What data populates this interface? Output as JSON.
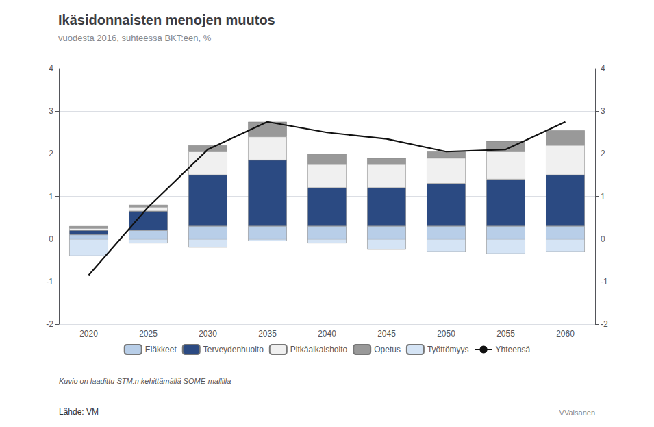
{
  "chart_data": {
    "type": "bar",
    "title": "Ikäsidonnaisten menojen muutos",
    "subtitle": "vuodesta 2016, suhteessa BKT:een, %",
    "categories": [
      "2020",
      "2025",
      "2030",
      "2035",
      "2040",
      "2045",
      "2050",
      "2055",
      "2060"
    ],
    "series": [
      {
        "name": "Eläkkeet",
        "type": "bar",
        "color": "#b8cee8",
        "values": [
          0.1,
          0.2,
          0.3,
          0.3,
          0.3,
          0.3,
          0.3,
          0.3,
          0.3
        ]
      },
      {
        "name": "Terveydenhuolto",
        "type": "bar",
        "color": "#2b4a82",
        "values": [
          0.1,
          0.45,
          1.2,
          1.55,
          0.9,
          0.9,
          1.0,
          1.1,
          1.2
        ]
      },
      {
        "name": "Pitkäaikaishoito",
        "type": "bar",
        "color": "#f0f0f0",
        "values": [
          0.05,
          0.1,
          0.55,
          0.55,
          0.55,
          0.55,
          0.6,
          0.65,
          0.7
        ]
      },
      {
        "name": "Opetus",
        "type": "bar",
        "color": "#999999",
        "values": [
          0.05,
          0.05,
          0.15,
          0.35,
          0.25,
          0.15,
          0.15,
          0.25,
          0.35
        ]
      },
      {
        "name": "Työttömyys",
        "type": "bar",
        "color": "#d5e4f5",
        "values": [
          -0.4,
          -0.1,
          -0.2,
          -0.05,
          -0.1,
          -0.25,
          -0.3,
          -0.35,
          -0.3
        ]
      },
      {
        "name": "Yhteensä",
        "type": "line",
        "color": "#111111",
        "values": [
          -0.85,
          0.75,
          2.1,
          2.75,
          2.5,
          2.35,
          2.05,
          2.1,
          2.75
        ]
      }
    ],
    "stacked": true,
    "ylim": [
      -2,
      4
    ],
    "yticks": [
      -2,
      -1,
      0,
      1,
      2,
      3,
      4
    ],
    "y2lim": [
      -2,
      4
    ],
    "y2ticks": [
      -2,
      -1,
      0,
      1,
      2,
      3,
      4
    ],
    "grid": true,
    "legend": "bottom",
    "annotations": [
      "Kuvio on laadittu STM:n kehittämällä SOME-mallilla",
      "Lähde: VM",
      "VVaisanen"
    ]
  }
}
